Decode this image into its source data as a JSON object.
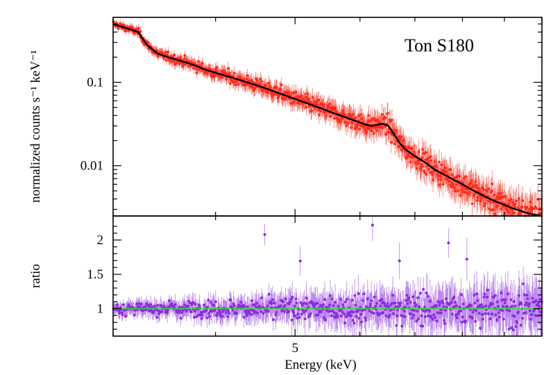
{
  "chart_data": [
    {
      "panel": "spectrum",
      "type": "scatter",
      "annotation": "Ton S180",
      "xlabel": "",
      "ylabel": "normalized counts s⁻¹ keV⁻¹",
      "x_scale": "log",
      "y_scale": "log",
      "xlim": [
        3.0,
        10.0
      ],
      "ylim": [
        0.0025,
        0.6
      ],
      "y_ticks": [
        {
          "value": 0.1,
          "label": "0.1"
        },
        {
          "value": 0.01,
          "label": "0.01"
        }
      ],
      "series": [
        {
          "role": "data",
          "color": "#ff2a1a",
          "description_points": "spectral counts with error bars",
          "x": [
            3.0,
            3.08,
            3.15,
            3.22,
            3.3,
            3.4,
            3.5,
            3.6,
            3.7,
            3.8,
            3.9,
            4.0,
            4.2,
            4.4,
            4.6,
            4.8,
            5.0,
            5.2,
            5.4,
            5.6,
            5.8,
            6.0,
            6.1,
            6.2,
            6.3,
            6.4,
            6.5,
            6.6,
            6.7,
            6.8,
            7.0,
            7.2,
            7.4,
            7.6,
            7.8,
            8.0,
            8.2,
            8.4,
            8.6,
            8.8,
            9.0,
            9.2,
            9.4,
            9.6,
            9.8,
            10.0
          ],
          "y": [
            0.5,
            0.46,
            0.43,
            0.4,
            0.28,
            0.22,
            0.2,
            0.185,
            0.17,
            0.155,
            0.14,
            0.13,
            0.113,
            0.098,
            0.085,
            0.073,
            0.063,
            0.055,
            0.048,
            0.042,
            0.037,
            0.033,
            0.031,
            0.03,
            0.031,
            0.032,
            0.03,
            0.024,
            0.019,
            0.016,
            0.013,
            0.011,
            0.009,
            0.0078,
            0.0068,
            0.006,
            0.0052,
            0.0046,
            0.0041,
            0.0037,
            0.0034,
            0.0031,
            0.0029,
            0.0027,
            0.0026,
            0.0025
          ]
        },
        {
          "role": "model",
          "color": "#000000",
          "x": [
            3.0,
            3.08,
            3.15,
            3.22,
            3.3,
            3.4,
            3.5,
            3.6,
            3.7,
            3.8,
            3.9,
            4.0,
            4.2,
            4.4,
            4.6,
            4.8,
            5.0,
            5.2,
            5.4,
            5.6,
            5.8,
            6.0,
            6.1,
            6.2,
            6.3,
            6.4,
            6.5,
            6.6,
            6.7,
            6.8,
            7.0,
            7.2,
            7.4,
            7.6,
            7.8,
            8.0,
            8.2,
            8.4,
            8.6,
            8.8,
            9.0,
            9.2,
            9.4,
            9.6,
            9.8,
            10.0
          ],
          "y": [
            0.5,
            0.46,
            0.43,
            0.4,
            0.28,
            0.22,
            0.2,
            0.185,
            0.17,
            0.155,
            0.14,
            0.13,
            0.113,
            0.098,
            0.085,
            0.073,
            0.063,
            0.055,
            0.048,
            0.042,
            0.037,
            0.033,
            0.031,
            0.03,
            0.031,
            0.032,
            0.03,
            0.024,
            0.019,
            0.016,
            0.013,
            0.011,
            0.009,
            0.0078,
            0.0068,
            0.006,
            0.0052,
            0.0046,
            0.0041,
            0.0037,
            0.0034,
            0.0031,
            0.0029,
            0.0027,
            0.0026,
            0.0025
          ]
        }
      ]
    },
    {
      "panel": "ratio",
      "type": "scatter",
      "xlabel": "Energy (keV)",
      "ylabel": "ratio",
      "x_scale": "log",
      "y_scale": "linear",
      "xlim": [
        3.0,
        10.0
      ],
      "ylim": [
        0.6,
        2.35
      ],
      "x_ticks": [
        {
          "value": 5,
          "label": "5"
        }
      ],
      "y_ticks": [
        {
          "value": 1,
          "label": "1"
        },
        {
          "value": 1.5,
          "label": "1.5"
        },
        {
          "value": 2,
          "label": "2"
        }
      ],
      "reference_line": {
        "y": 1,
        "color": "#33dd33"
      },
      "series": [
        {
          "role": "ratio",
          "color": "#8a2be2",
          "scatter_sd_at_xmin": 0.06,
          "scatter_sd_at_xmax": 0.22
        }
      ]
    }
  ]
}
